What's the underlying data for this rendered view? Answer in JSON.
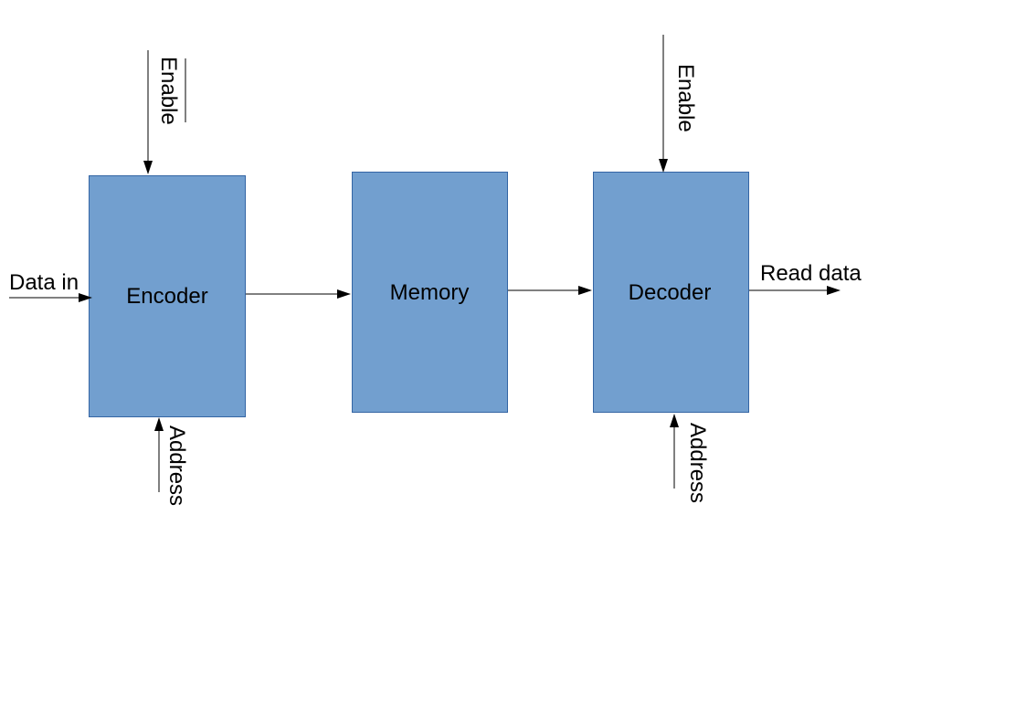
{
  "blocks": {
    "encoder": "Encoder",
    "memory": "Memory",
    "decoder": "Decoder"
  },
  "signals": {
    "data_in": "Data in",
    "read_data": "Read data",
    "encoder_enable": "Enable",
    "encoder_address": "Address",
    "decoder_enable": "Enable",
    "decoder_address": "Address"
  },
  "colors": {
    "block_fill": "#729fcf",
    "block_stroke": "#3465a4",
    "line": "#000000"
  }
}
